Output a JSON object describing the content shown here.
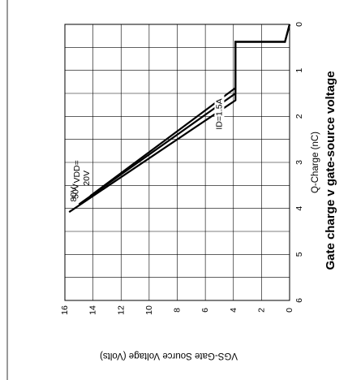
{
  "chart_data": {
    "type": "line",
    "title": "Gate charge v gate-source voltage",
    "xlabel": "Q-Charge (nC)",
    "ylabel": "VGS-Gate Source Voltage (Volts)",
    "xlim": [
      0,
      6
    ],
    "ylim": [
      0,
      16
    ],
    "xticks": [
      "0",
      "1",
      "2",
      "3",
      "4",
      "5",
      "6"
    ],
    "yticks": [
      "0",
      "2",
      "4",
      "6",
      "8",
      "10",
      "12",
      "14",
      "16"
    ],
    "grid": true,
    "orientation": "rotated 90 degrees clockwise",
    "annotations": {
      "vdd_prefix": "VDD=",
      "id_label": "ID=1.5A"
    },
    "series": [
      {
        "name": "20V",
        "x": [
          0,
          0.38,
          0.38,
          1.38,
          3.73
        ],
        "y": [
          0,
          0.33,
          3.85,
          3.85,
          14.2
        ]
      },
      {
        "name": "50V",
        "x": [
          0,
          0.38,
          0.38,
          1.5,
          3.91
        ],
        "y": [
          0,
          0.33,
          3.85,
          3.85,
          15.0
        ]
      },
      {
        "name": "80V",
        "x": [
          0,
          0.38,
          0.38,
          1.65,
          4.08
        ],
        "y": [
          0,
          0.33,
          3.85,
          3.85,
          15.7
        ]
      }
    ]
  }
}
